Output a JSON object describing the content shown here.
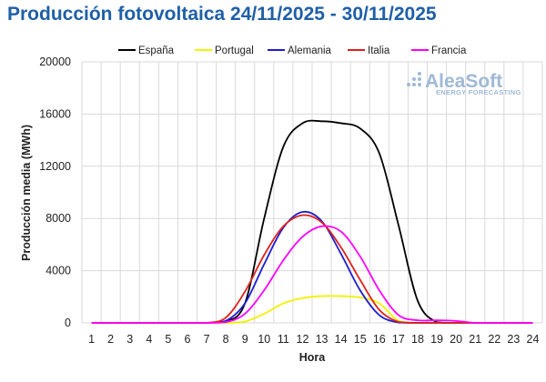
{
  "title": "Producción fotovoltaica 24/11/2025 - 30/11/2025",
  "watermark": {
    "brand": "AleaSoft",
    "tagline": "ENERGY FORECASTING"
  },
  "chart_data": {
    "type": "line",
    "xlabel": "Hora",
    "ylabel": "Producción media (MWh)",
    "ylim": [
      0,
      20000
    ],
    "yticks": [
      0,
      4000,
      8000,
      12000,
      16000,
      20000
    ],
    "x": [
      1,
      2,
      3,
      4,
      5,
      6,
      7,
      8,
      9,
      10,
      11,
      12,
      13,
      14,
      15,
      16,
      17,
      18,
      19,
      20,
      21,
      22,
      23,
      24
    ],
    "grid": true,
    "legend_position": "top",
    "series": [
      {
        "name": "España",
        "color": "#000000",
        "values": [
          0,
          0,
          0,
          0,
          0,
          0,
          0,
          100,
          1500,
          8000,
          13500,
          15300,
          15450,
          15300,
          14900,
          13000,
          7500,
          1700,
          50,
          0,
          0,
          0,
          0,
          0
        ]
      },
      {
        "name": "Portugal",
        "color": "#f2f200",
        "values": [
          0,
          0,
          0,
          0,
          0,
          0,
          0,
          0,
          100,
          700,
          1500,
          1900,
          2050,
          2050,
          1950,
          1500,
          150,
          0,
          0,
          0,
          0,
          0,
          0,
          0
        ]
      },
      {
        "name": "Alemania",
        "color": "#1c1cd0",
        "values": [
          0,
          0,
          0,
          0,
          0,
          0,
          0,
          150,
          1500,
          4500,
          7300,
          8500,
          7800,
          5300,
          2500,
          600,
          30,
          0,
          0,
          0,
          0,
          0,
          0,
          0
        ]
      },
      {
        "name": "Italia",
        "color": "#e0201c",
        "values": [
          0,
          0,
          0,
          0,
          0,
          0,
          0,
          400,
          2400,
          5200,
          7400,
          8250,
          7700,
          5800,
          3300,
          1000,
          80,
          0,
          0,
          0,
          0,
          0,
          0,
          0
        ]
      },
      {
        "name": "Francia",
        "color": "#ff00ff",
        "values": [
          0,
          0,
          0,
          0,
          0,
          0,
          0,
          50,
          700,
          2500,
          4800,
          6600,
          7400,
          7000,
          5100,
          2500,
          600,
          200,
          200,
          150,
          0,
          0,
          0,
          0
        ]
      }
    ]
  }
}
